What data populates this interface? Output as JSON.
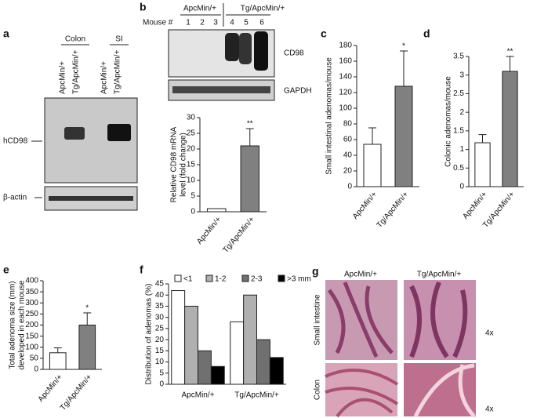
{
  "blots": {
    "a": {
      "letter": "a",
      "groups": [
        "Colon",
        "SI"
      ],
      "lanes": [
        "ApcMin/+",
        "Tg/ApcMin/+",
        "ApcMin/+",
        "Tg/ApcMin/+"
      ],
      "bands": [
        "hCD98",
        "β-actin"
      ]
    },
    "b": {
      "letter": "b",
      "groups": [
        "ApcMin/+",
        "Tg/ApcMin/+"
      ],
      "lane_header": "Mouse #",
      "lanes": [
        "1",
        "2",
        "3",
        "4",
        "5",
        "6"
      ],
      "bands": [
        "CD98",
        "GAPDH"
      ]
    }
  },
  "histology": {
    "letter": "g",
    "columns": [
      "ApcMin/+",
      "Tg/ApcMin/+"
    ],
    "rows": [
      "Small intestine",
      "Colon"
    ],
    "magnification": [
      "4x",
      "4x"
    ]
  },
  "chart_data": [
    {
      "type": "bar",
      "ylabel": [
        "Relative CD98 mRNA",
        "level (fold change)"
      ],
      "categories": [
        "ApcMin/+",
        "Tg/ApcMin/+"
      ],
      "values": [
        1,
        21
      ],
      "errors": [
        0,
        5.5
      ],
      "colors": [
        "#ffffff",
        "#808080"
      ],
      "ylim": [
        0,
        30
      ],
      "yticks": [
        0,
        5,
        10,
        15,
        20,
        25,
        30
      ],
      "annotations": [
        {
          "category": "Tg/ApcMin/+",
          "text": "**"
        }
      ]
    },
    {
      "type": "bar",
      "panel": "c",
      "ylabel": [
        "Small intestinal adenomas/mouse"
      ],
      "categories": [
        "ApcMin/+",
        "Tg/ApcMin/+"
      ],
      "values": [
        54,
        128
      ],
      "errors": [
        21,
        45
      ],
      "colors": [
        "#ffffff",
        "#808080"
      ],
      "ylim": [
        0,
        180
      ],
      "yticks": [
        0,
        20,
        40,
        60,
        80,
        100,
        120,
        140,
        160,
        180
      ],
      "annotations": [
        {
          "category": "Tg/ApcMin/+",
          "text": "*"
        }
      ]
    },
    {
      "type": "bar",
      "panel": "d",
      "ylabel": [
        "Colonic adenomas/mouse"
      ],
      "categories": [
        "ApcMin/+",
        "Tg/ApcMin/+"
      ],
      "values": [
        1.18,
        3.1
      ],
      "errors": [
        0.22,
        0.4
      ],
      "colors": [
        "#ffffff",
        "#808080"
      ],
      "ylim": [
        0,
        3.5
      ],
      "yticks": [
        0,
        0.5,
        1,
        1.5,
        2,
        2.5,
        3,
        3.5
      ],
      "annotations": [
        {
          "category": "Tg/ApcMin/+",
          "text": "**"
        }
      ]
    },
    {
      "type": "bar",
      "panel": "e",
      "ylabel": [
        "Total adenoma size (mm)",
        "developed in each mouse"
      ],
      "categories": [
        "ApcMin/+",
        "Tg/ApcMin/+"
      ],
      "values": [
        75,
        200
      ],
      "errors": [
        22,
        55
      ],
      "colors": [
        "#ffffff",
        "#808080"
      ],
      "ylim": [
        0,
        400
      ],
      "yticks": [
        0,
        50,
        100,
        150,
        200,
        250,
        300,
        350,
        400
      ],
      "annotations": [
        {
          "category": "Tg/ApcMin/+",
          "text": "*"
        }
      ]
    },
    {
      "type": "grouped",
      "panel": "f",
      "ylabel": [
        "Distribution of adenomas (%)"
      ],
      "categories": [
        "ApcMin/+",
        "Tg/ApcMin/+"
      ],
      "series": [
        {
          "name": "<1",
          "color": "#ffffff",
          "values": [
            42,
            28
          ]
        },
        {
          "name": "1-2",
          "color": "#b0b0b0",
          "values": [
            35,
            40
          ]
        },
        {
          "name": "2-3",
          "color": "#707070",
          "values": [
            15,
            20
          ]
        },
        {
          "name": ">3 mm",
          "color": "#000000",
          "values": [
            8,
            12
          ]
        }
      ],
      "ylim": [
        0,
        45
      ],
      "yticks": [
        0,
        5,
        10,
        15,
        20,
        25,
        30,
        35,
        40,
        45
      ]
    }
  ]
}
